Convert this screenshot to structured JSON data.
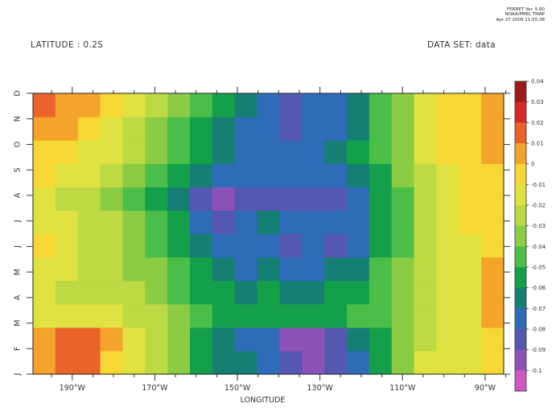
{
  "header": {
    "latitude_label": "LATITUDE : 0.2S",
    "dataset_label": "DATA SET: data",
    "stamp": [
      "FERRET Ver. 5.60",
      "NOAA/PMEL TMAP",
      "Apr 27 2009 11:55:38"
    ]
  },
  "chart_data": {
    "type": "heatmap",
    "title": "",
    "xlabel": "LONGITUDE",
    "ylabel": "",
    "x_ticks": [
      "190°W",
      "170°W",
      "150°W",
      "130°W",
      "110°W",
      "90°W"
    ],
    "x_tick_values": [
      190,
      170,
      150,
      130,
      110,
      90
    ],
    "xlim": [
      199.5,
      85.5
    ],
    "y_ticks": [
      "J",
      "F",
      "M",
      "A",
      "M",
      "J",
      "J",
      "A",
      "S",
      "O",
      "N",
      "D"
    ],
    "y_tick_values": [
      1,
      2,
      3,
      4,
      5,
      6,
      7,
      8,
      9,
      10,
      11,
      12
    ],
    "ylim": [
      1,
      12
    ],
    "colorbar": {
      "ticks": [
        "0.04",
        "0.03",
        "0.02",
        "0.01",
        "0",
        "-0.01",
        "-0.02",
        "-0.03",
        "-0.04",
        "-0.05",
        "-0.06",
        "-0.07",
        "-0.08",
        "-0.09",
        "-0.1"
      ],
      "levels": [
        -0.1,
        -0.09,
        -0.08,
        -0.07,
        -0.06,
        -0.05,
        -0.04,
        -0.03,
        -0.02,
        -0.01,
        0,
        0.01,
        0.02,
        0.03,
        0.04
      ],
      "colors": [
        "#d157c2",
        "#8c52b8",
        "#5558b0",
        "#2e6cb8",
        "#157f74",
        "#14a04a",
        "#4bbe4a",
        "#8ccc45",
        "#bdd944",
        "#dfe241",
        "#f6d734",
        "#f4a42a",
        "#ea632a",
        "#d62a2a",
        "#9e1a1a"
      ]
    },
    "grid": [
      [
        0.015,
        0.025,
        0.02,
        0.005,
        -0.01,
        -0.02,
        -0.03,
        -0.045,
        -0.055,
        -0.06,
        -0.07,
        -0.08,
        -0.085,
        -0.075,
        -0.065,
        -0.05,
        -0.03,
        -0.01,
        -0.005,
        -0.01,
        0.005
      ],
      [
        0.01,
        0.02,
        0.025,
        0.01,
        -0.005,
        -0.015,
        -0.03,
        -0.045,
        -0.055,
        -0.065,
        -0.07,
        -0.085,
        -0.085,
        -0.075,
        -0.06,
        -0.045,
        -0.03,
        -0.015,
        -0.005,
        -0.01,
        0.008
      ],
      [
        -0.005,
        -0.005,
        -0.005,
        -0.01,
        -0.015,
        -0.02,
        -0.03,
        -0.04,
        -0.045,
        -0.05,
        -0.045,
        -0.05,
        -0.05,
        -0.045,
        -0.04,
        -0.035,
        -0.025,
        -0.015,
        -0.005,
        -0.01,
        0.01
      ],
      [
        -0.005,
        -0.012,
        -0.015,
        -0.015,
        -0.02,
        -0.025,
        -0.035,
        -0.045,
        -0.05,
        -0.055,
        -0.05,
        -0.055,
        -0.055,
        -0.05,
        -0.045,
        -0.035,
        -0.025,
        -0.015,
        -0.005,
        -0.005,
        0.015
      ],
      [
        -0.002,
        -0.01,
        -0.015,
        -0.02,
        -0.025,
        -0.03,
        -0.04,
        -0.05,
        -0.06,
        -0.065,
        -0.06,
        -0.065,
        -0.065,
        -0.06,
        -0.055,
        -0.04,
        -0.03,
        -0.02,
        -0.005,
        -0.005,
        0.01
      ],
      [
        0.0,
        -0.008,
        -0.012,
        -0.02,
        -0.025,
        -0.035,
        -0.045,
        -0.06,
        -0.07,
        -0.07,
        -0.065,
        -0.075,
        -0.07,
        -0.075,
        -0.065,
        -0.05,
        -0.035,
        -0.02,
        -0.005,
        -0.005,
        0.005
      ],
      [
        -0.002,
        -0.01,
        -0.015,
        -0.02,
        -0.03,
        -0.04,
        -0.05,
        -0.065,
        -0.075,
        -0.07,
        -0.06,
        -0.07,
        -0.07,
        -0.07,
        -0.065,
        -0.05,
        -0.035,
        -0.02,
        -0.005,
        0.0,
        0.005
      ],
      [
        -0.005,
        -0.012,
        -0.015,
        -0.025,
        -0.035,
        -0.045,
        -0.06,
        -0.075,
        -0.085,
        -0.08,
        -0.075,
        -0.08,
        -0.075,
        -0.075,
        -0.065,
        -0.05,
        -0.035,
        -0.02,
        -0.008,
        0.0,
        0.008
      ],
      [
        0.0,
        -0.005,
        -0.01,
        -0.015,
        -0.025,
        -0.035,
        -0.05,
        -0.06,
        -0.07,
        -0.07,
        -0.07,
        -0.07,
        -0.07,
        -0.07,
        -0.06,
        -0.045,
        -0.03,
        -0.015,
        -0.005,
        0.0,
        0.008
      ],
      [
        0.005,
        0.0,
        -0.005,
        -0.01,
        -0.02,
        -0.03,
        -0.04,
        -0.05,
        -0.06,
        -0.065,
        -0.065,
        -0.065,
        -0.065,
        -0.06,
        -0.05,
        -0.04,
        -0.025,
        -0.01,
        0.0,
        0.0,
        0.01
      ],
      [
        0.015,
        0.01,
        0.002,
        -0.005,
        -0.015,
        -0.025,
        -0.035,
        -0.045,
        -0.055,
        -0.065,
        -0.07,
        -0.075,
        -0.07,
        -0.065,
        -0.055,
        -0.04,
        -0.025,
        -0.01,
        0.0,
        0.0,
        0.01
      ],
      [
        0.02,
        0.015,
        0.01,
        0.0,
        -0.01,
        -0.02,
        -0.03,
        -0.04,
        -0.05,
        -0.06,
        -0.07,
        -0.075,
        -0.07,
        -0.065,
        -0.055,
        -0.04,
        -0.025,
        -0.01,
        0.0,
        0.005,
        0.01
      ]
    ]
  }
}
